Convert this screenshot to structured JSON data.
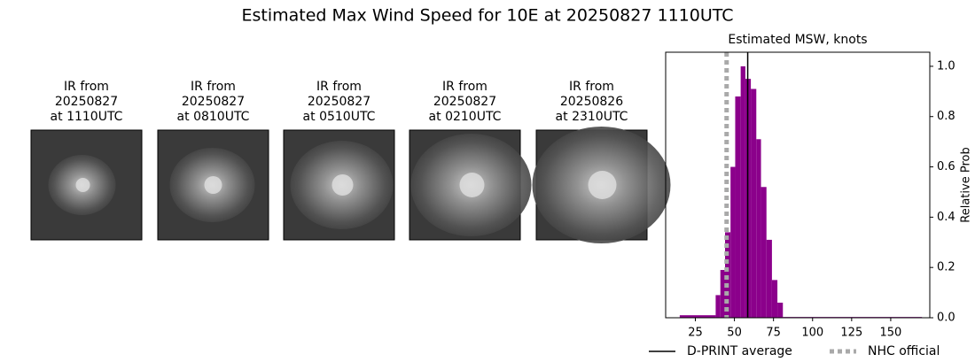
{
  "title": "Estimated Max Wind Speed for 10E at 20250827 1110UTC",
  "panels": [
    {
      "lines": [
        "IR from",
        "20250827",
        "at 1110UTC"
      ]
    },
    {
      "lines": [
        "IR from",
        "20250827",
        "at 0810UTC"
      ]
    },
    {
      "lines": [
        "IR from",
        "20250827",
        "at 0510UTC"
      ]
    },
    {
      "lines": [
        "IR from",
        "20250827",
        "at 0210UTC"
      ]
    },
    {
      "lines": [
        "IR from",
        "20250826",
        "at 2310UTC"
      ]
    }
  ],
  "chart_data": {
    "type": "histogram",
    "title": "Estimated MSW, knots",
    "ylabel": "Relative Prob",
    "color": "#8b008b",
    "bins": [
      15,
      38,
      41,
      44,
      47.5,
      50.5,
      54,
      57,
      60.5,
      64,
      67,
      70.5,
      74,
      77.5,
      81,
      170
    ],
    "values": [
      0.01,
      0.09,
      0.19,
      0.34,
      0.6,
      0.88,
      1.0,
      0.95,
      0.91,
      0.71,
      0.52,
      0.31,
      0.15,
      0.06,
      0.003
    ],
    "xlim": [
      6,
      175
    ],
    "xticks": [
      25,
      50,
      75,
      100,
      125,
      150
    ],
    "ylim": [
      0,
      1.056
    ],
    "yticks": [
      {
        "value": 0,
        "label": "0.0"
      },
      {
        "value": 0.2,
        "label": "0.2"
      },
      {
        "value": 0.4,
        "label": "0.4"
      },
      {
        "value": 0.6,
        "label": "0.6"
      },
      {
        "value": 0.8,
        "label": "0.8"
      },
      {
        "value": 1.0,
        "label": "1.0"
      }
    ],
    "lines": [
      {
        "name": "D-PRINT average",
        "value": 58.5,
        "color": "#000000",
        "style": "solid"
      },
      {
        "name": "NHC official",
        "value": 45,
        "color": "#a9a9a9",
        "style": "dotted"
      }
    ]
  }
}
